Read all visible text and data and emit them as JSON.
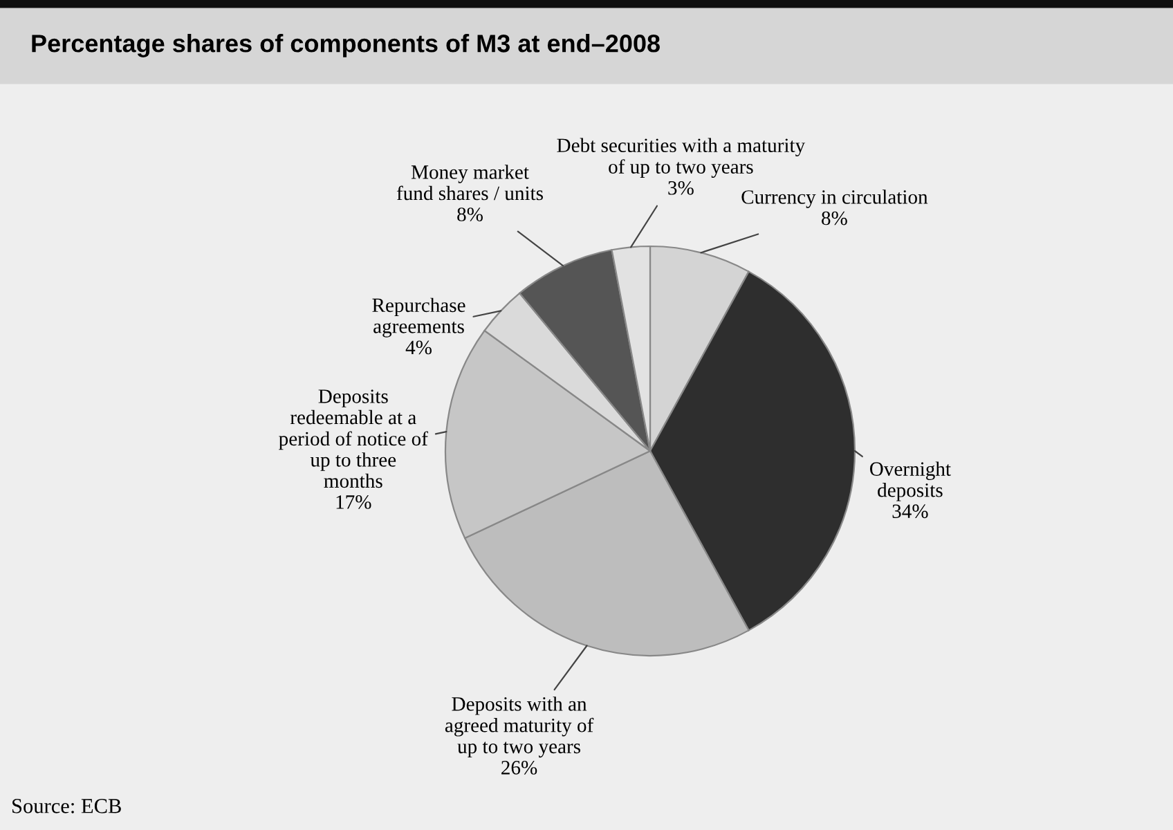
{
  "chart_data": {
    "type": "pie",
    "title": "Percentage shares of components of M3 at end–2008",
    "categories": [
      "Currency in circulation",
      "Overnight\ndeposits",
      "Deposits with an\nagreed maturity of\nup to two years",
      "Deposits\nredeemable at a\nperiod of notice of\nup to three\nmonths",
      "Repurchase\nagreements",
      "Money market\nfund shares / units",
      "Debt securities with a maturity\nof up to two years"
    ],
    "values": [
      8,
      34,
      26,
      17,
      4,
      8,
      3
    ],
    "value_labels": [
      "8%",
      "34%",
      "26%",
      "17%",
      "4%",
      "8%",
      "3%"
    ],
    "colors": [
      "#d4d4d4",
      "#2e2e2e",
      "#bdbdbd",
      "#c6c6c6",
      "#dadada",
      "#555555",
      "#e2e2e2"
    ],
    "annotations": [
      "Source: ECB"
    ]
  }
}
